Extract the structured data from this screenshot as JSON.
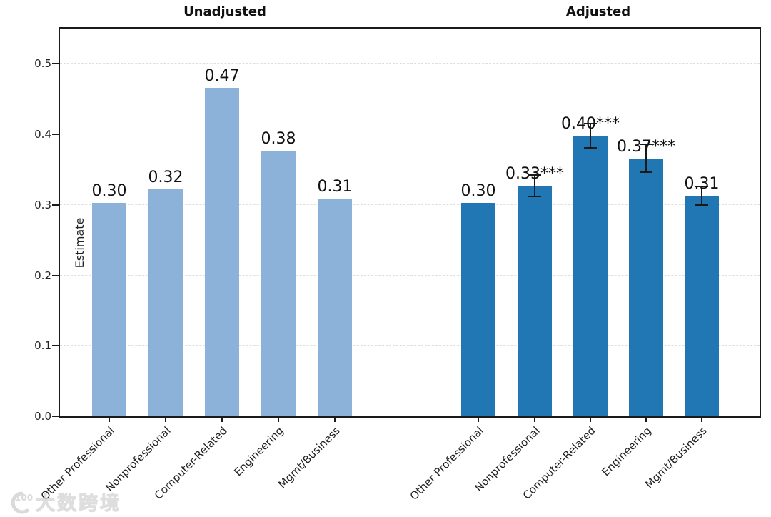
{
  "watermark": {
    "logo_text": "100",
    "text": "大数跨境"
  },
  "chart_data": {
    "type": "bar",
    "title": "",
    "xlabel": "",
    "ylabel": "Estimate",
    "ylim": [
      0,
      0.55
    ],
    "yticks": [
      0.0,
      0.1,
      0.2,
      0.3,
      0.4,
      0.5
    ],
    "ytick_labels": [
      "0.0",
      "0.1",
      "0.2",
      "0.3",
      "0.4",
      "0.5"
    ],
    "grid": "horizontal dashed gridlines on; dotted vertical separator between panels",
    "legend": "none",
    "categories": [
      "Other Professional",
      "Nonprofessional",
      "Computer-Related",
      "Engineering",
      "Mgmt/Business"
    ],
    "panels": [
      {
        "title": "Unadjusted",
        "bar_color": "#8cb2d9",
        "values": [
          0.303,
          0.322,
          0.466,
          0.377,
          0.309
        ],
        "labels": [
          "0.30",
          "0.32",
          "0.47",
          "0.38",
          "0.31"
        ],
        "errors": [
          null,
          null,
          null,
          null,
          null
        ]
      },
      {
        "title": "Adjusted",
        "bar_color": "#2077b4",
        "values": [
          0.303,
          0.327,
          0.398,
          0.366,
          0.313
        ],
        "labels": [
          "0.30",
          "0.33***",
          "0.40***",
          "0.37***",
          "0.31"
        ],
        "errors": [
          null,
          0.015,
          0.017,
          0.02,
          0.013
        ]
      }
    ]
  }
}
